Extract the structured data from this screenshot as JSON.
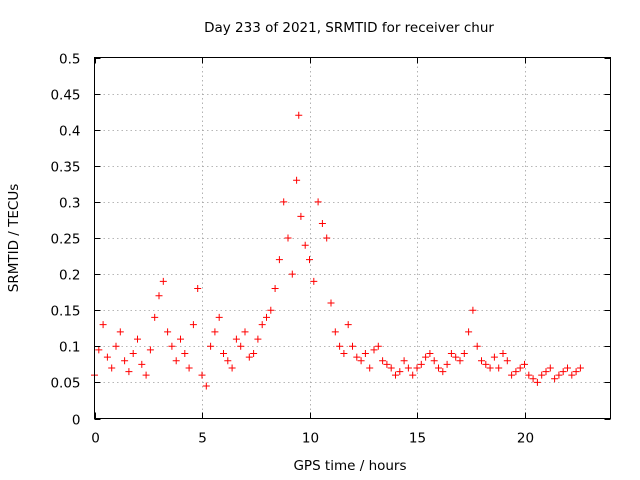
{
  "chart_data": {
    "type": "scatter",
    "title": "Day 233 of 2021, SRMTID for receiver chur",
    "xlabel": "GPS time / hours",
    "ylabel": "SRMTID / TECUs",
    "xlim": [
      0,
      24
    ],
    "ylim": [
      0,
      0.5
    ],
    "x_ticks": [
      "0",
      "5",
      "10",
      "15",
      "20"
    ],
    "y_ticks": [
      "0",
      "0.05",
      "0.1",
      "0.15",
      "0.2",
      "0.25",
      "0.3",
      "0.35",
      "0.4",
      "0.45",
      "0.5"
    ],
    "grid": true,
    "marker": "+",
    "color": "#ff0000",
    "series": [
      {
        "name": "SRMTID",
        "x": [
          0.0,
          0.2,
          0.4,
          0.6,
          0.8,
          1.0,
          1.2,
          1.4,
          1.6,
          1.8,
          2.0,
          2.2,
          2.4,
          2.6,
          2.8,
          3.0,
          3.2,
          3.4,
          3.6,
          3.8,
          4.0,
          4.2,
          4.4,
          4.6,
          4.8,
          5.0,
          5.2,
          5.4,
          5.6,
          5.8,
          6.0,
          6.2,
          6.4,
          6.6,
          6.8,
          7.0,
          7.2,
          7.4,
          7.6,
          7.8,
          8.0,
          8.2,
          8.4,
          8.6,
          8.8,
          9.0,
          9.2,
          9.4,
          9.5,
          9.6,
          9.8,
          10.0,
          10.2,
          10.4,
          10.6,
          10.8,
          11.0,
          11.2,
          11.4,
          11.6,
          11.8,
          12.0,
          12.2,
          12.4,
          12.6,
          12.8,
          13.0,
          13.2,
          13.4,
          13.6,
          13.8,
          14.0,
          14.2,
          14.4,
          14.6,
          14.8,
          15.0,
          15.2,
          15.4,
          15.6,
          15.8,
          16.0,
          16.2,
          16.4,
          16.6,
          16.8,
          17.0,
          17.2,
          17.4,
          17.6,
          17.8,
          18.0,
          18.2,
          18.4,
          18.6,
          18.8,
          19.0,
          19.2,
          19.4,
          19.6,
          19.8,
          20.0,
          20.2,
          20.4,
          20.6,
          20.8,
          21.0,
          21.2,
          21.4,
          21.6,
          21.8,
          22.0,
          22.2,
          22.4,
          22.6
        ],
        "y": [
          0.06,
          0.095,
          0.13,
          0.085,
          0.07,
          0.1,
          0.12,
          0.08,
          0.065,
          0.09,
          0.11,
          0.075,
          0.06,
          0.095,
          0.14,
          0.17,
          0.19,
          0.12,
          0.1,
          0.08,
          0.11,
          0.09,
          0.07,
          0.13,
          0.18,
          0.06,
          0.045,
          0.1,
          0.12,
          0.14,
          0.09,
          0.08,
          0.07,
          0.11,
          0.1,
          0.12,
          0.085,
          0.09,
          0.11,
          0.13,
          0.14,
          0.15,
          0.18,
          0.22,
          0.3,
          0.25,
          0.2,
          0.33,
          0.42,
          0.28,
          0.24,
          0.22,
          0.19,
          0.3,
          0.27,
          0.25,
          0.16,
          0.12,
          0.1,
          0.09,
          0.13,
          0.1,
          0.085,
          0.08,
          0.09,
          0.07,
          0.095,
          0.1,
          0.08,
          0.075,
          0.07,
          0.06,
          0.065,
          0.08,
          0.07,
          0.06,
          0.07,
          0.075,
          0.085,
          0.09,
          0.08,
          0.07,
          0.065,
          0.075,
          0.09,
          0.085,
          0.08,
          0.09,
          0.12,
          0.15,
          0.1,
          0.08,
          0.075,
          0.07,
          0.085,
          0.07,
          0.09,
          0.08,
          0.06,
          0.065,
          0.07,
          0.075,
          0.06,
          0.055,
          0.05,
          0.06,
          0.065,
          0.07,
          0.055,
          0.06,
          0.065,
          0.07,
          0.06,
          0.065,
          0.07
        ]
      }
    ]
  }
}
